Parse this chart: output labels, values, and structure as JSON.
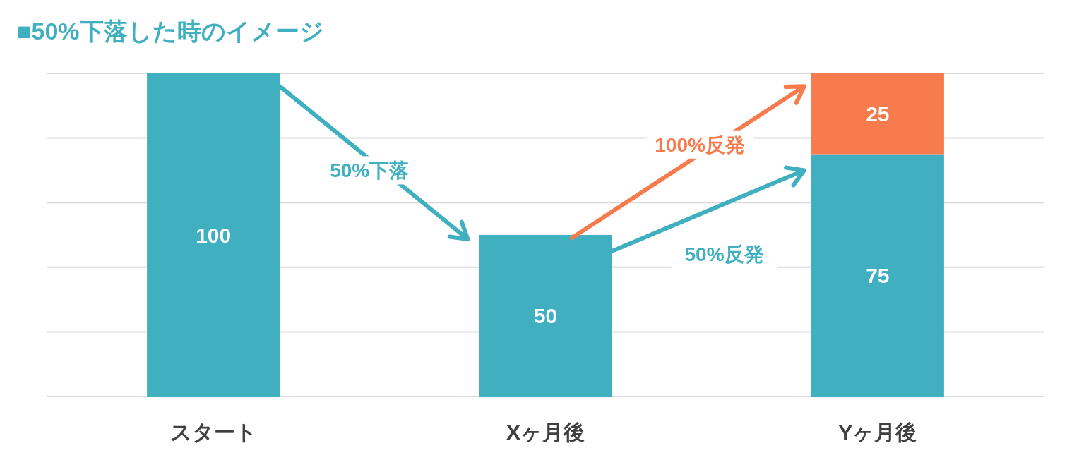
{
  "chart_data": {
    "type": "bar",
    "title": "■50%下落した時のイメージ",
    "categories": [
      "スタート",
      "Xヶ月後",
      "Yヶ月後"
    ],
    "stacked": true,
    "series": [
      {
        "color": "#40b0c0",
        "values": [
          100,
          50,
          75
        ]
      },
      {
        "color": "#f77b4d",
        "values": [
          null,
          null,
          25
        ]
      }
    ],
    "ylim": [
      0,
      100
    ],
    "yticks": [
      {
        "value": 0,
        "label": null
      },
      {
        "value": 20,
        "label": null
      },
      {
        "value": 40,
        "label": null
      },
      {
        "value": 60,
        "label": null
      },
      {
        "value": 80,
        "label": null
      },
      {
        "value": 100,
        "label": null
      }
    ],
    "grid": "y",
    "tick_labels": "x",
    "data_labels": true,
    "annotations": [
      "50%下落",
      "100%反発",
      "50%反発"
    ]
  }
}
